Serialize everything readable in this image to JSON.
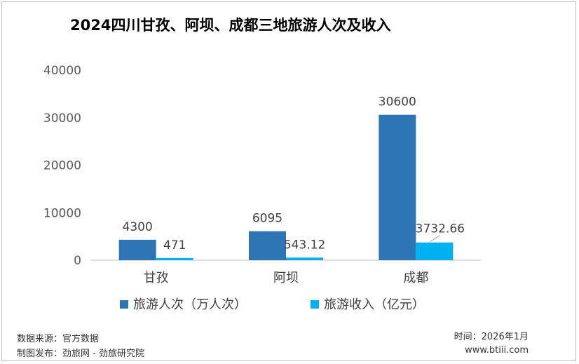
{
  "chart_data": {
    "type": "bar",
    "title": "2024四川甘孜、阿坝、成都三地旅游人次及收入",
    "categories": [
      "甘孜",
      "阿坝",
      "成都"
    ],
    "series": [
      {
        "name": "旅游人次（万人次）",
        "values": [
          4300,
          6095,
          30600
        ],
        "labels": [
          "4300",
          "6095",
          "30600"
        ],
        "color": "#2e75b6"
      },
      {
        "name": "旅游收入（亿元）",
        "values": [
          471,
          543.12,
          3732.66
        ],
        "labels": [
          "471",
          "543.12",
          "3732.66"
        ],
        "color": "#00b0f0"
      }
    ],
    "ylim": [
      0,
      40000
    ],
    "yticks": [
      "0",
      "10000",
      "20000",
      "30000",
      "40000"
    ],
    "grid": false,
    "legend": "bottom"
  },
  "footer": {
    "source": "数据来源：官方数据",
    "producer": "制图发布：劲旅网 - 劲旅研究院",
    "time": "时间：2026年1月",
    "site": "www.btiii.com"
  }
}
